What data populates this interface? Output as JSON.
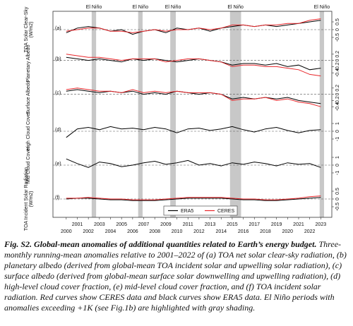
{
  "chart_data": {
    "type": "line",
    "x": [
      2000,
      2001,
      2002,
      2003,
      2004,
      2005,
      2006,
      2007,
      2008,
      2009,
      2010,
      2011,
      2012,
      2013,
      2014,
      2015,
      2016,
      2017,
      2018,
      2019,
      2020,
      2021,
      2022,
      2023
    ],
    "xlim": [
      1998.8,
      2024.0
    ],
    "xticks": [
      2000,
      2001,
      2002,
      2003,
      2004,
      2005,
      2006,
      2007,
      2008,
      2009,
      2010,
      2011,
      2012,
      2013,
      2014,
      2015,
      2016,
      2017,
      2018,
      2019,
      2020,
      2021,
      2022,
      2023
    ],
    "el_nino": [
      {
        "label": "El Niño",
        "range": [
          2002.3,
          2002.7
        ]
      },
      {
        "label": "El Niño",
        "range": [
          2006.5,
          2006.9
        ]
      },
      {
        "label": "El Niño",
        "range": [
          2009.4,
          2009.9
        ]
      },
      {
        "label": "El Niño",
        "range": [
          2014.8,
          2015.8
        ]
      },
      {
        "label": "El Niño",
        "range": [
          2022.9,
          2023.3
        ]
      }
    ],
    "legend": [
      {
        "name": "ERA5",
        "color": "#000000"
      },
      {
        "name": "CERES",
        "color": "#e8262a"
      }
    ],
    "panels": [
      {
        "label": "(a)",
        "ylabel": [
          "TOA Solar Clear-Sky",
          "(W/m2)"
        ],
        "ylim": [
          -1,
          1
        ],
        "yticks": [
          -0.5,
          0,
          0.5
        ],
        "era5": [
          -0.2,
          0.1,
          0.2,
          0.1,
          -0.1,
          0.0,
          -0.3,
          -0.1,
          0.0,
          -0.2,
          0.1,
          0.0,
          0.1,
          -0.1,
          0.1,
          0.2,
          0.3,
          0.2,
          0.3,
          0.2,
          0.3,
          0.4,
          0.5,
          0.6
        ],
        "ceres": [
          -0.1,
          0.0,
          0.1,
          0.1,
          -0.1,
          -0.1,
          -0.2,
          -0.1,
          0.0,
          -0.1,
          0.0,
          0.0,
          0.1,
          0.0,
          0.1,
          0.3,
          0.3,
          0.2,
          0.3,
          0.3,
          0.4,
          0.4,
          0.6,
          0.7
        ]
      },
      {
        "label": "(b)",
        "ylabel": [
          "Planetary Albedo"
        ],
        "ylim": [
          -0.6,
          0.4
        ],
        "yticks": [
          -0.4,
          -0.2,
          0,
          0.2
        ],
        "era5": [
          0.1,
          0.05,
          0.0,
          0.05,
          0.0,
          -0.05,
          0.05,
          0.0,
          0.05,
          0.0,
          -0.05,
          0.0,
          0.05,
          0.0,
          -0.05,
          -0.15,
          -0.1,
          -0.1,
          -0.15,
          -0.1,
          -0.2,
          -0.15,
          -0.3,
          -0.25
        ],
        "ceres": [
          0.2,
          0.15,
          0.1,
          0.1,
          0.05,
          0.0,
          0.05,
          0.05,
          0.05,
          -0.05,
          0.0,
          0.05,
          0.05,
          0.0,
          -0.05,
          -0.2,
          -0.15,
          -0.15,
          -0.2,
          -0.2,
          -0.25,
          -0.3,
          -0.45,
          -0.5
        ]
      },
      {
        "label": "(c)",
        "ylabel": [
          "Surface Albedo"
        ],
        "ylim": [
          -0.6,
          0.4
        ],
        "yticks": [
          -0.4,
          -0.2,
          0,
          0.2
        ],
        "era5": [
          0.1,
          0.15,
          0.1,
          0.05,
          0.1,
          0.05,
          0.1,
          0.0,
          0.05,
          0.0,
          0.1,
          0.05,
          0.0,
          0.05,
          0.0,
          -0.15,
          -0.1,
          -0.15,
          -0.1,
          -0.15,
          -0.1,
          -0.2,
          -0.25,
          -0.3
        ],
        "ceres": [
          0.15,
          0.2,
          0.15,
          0.1,
          0.1,
          0.05,
          0.15,
          0.05,
          0.1,
          0.05,
          0.1,
          0.05,
          0.05,
          0.05,
          0.0,
          -0.2,
          -0.15,
          -0.15,
          -0.1,
          -0.2,
          -0.15,
          -0.25,
          -0.3,
          -0.4
        ]
      },
      {
        "label": "(d)",
        "ylabel": [
          "High Cloud Cover"
        ],
        "ylim": [
          -2,
          2
        ],
        "yticks": [
          -1,
          0,
          1
        ],
        "era5": [
          -0.8,
          0.3,
          0.5,
          0.2,
          0.6,
          0.3,
          0.4,
          0.2,
          0.5,
          0.3,
          -0.2,
          0.3,
          0.4,
          0.1,
          0.3,
          0.6,
          0.2,
          -0.1,
          0.3,
          0.5,
          0.1,
          -0.2,
          0.1,
          0.2
        ]
      },
      {
        "label": "(e)",
        "ylabel": [
          "Mid Cloud Cover"
        ],
        "ylim": [
          -2,
          2
        ],
        "yticks": [
          -1,
          0,
          1
        ],
        "era5": [
          0.8,
          0.2,
          -0.3,
          0.4,
          0.2,
          -0.2,
          0.0,
          0.3,
          0.5,
          0.1,
          0.3,
          0.6,
          0.0,
          0.2,
          -0.1,
          0.3,
          0.1,
          0.4,
          0.2,
          -0.1,
          0.3,
          0.1,
          0.2,
          -0.3
        ]
      },
      {
        "label": "(f)",
        "ylabel": [
          "TOA Incident Solar Radiation",
          "(W/m2)"
        ],
        "ylim": [
          -1,
          1
        ],
        "yticks": [
          -0.5,
          0,
          0.5
        ],
        "era5": [
          0.0,
          0.05,
          0.05,
          0.0,
          -0.05,
          -0.05,
          -0.1,
          -0.1,
          -0.1,
          -0.05,
          0.0,
          0.05,
          0.05,
          0.05,
          0.05,
          0.0,
          -0.05,
          -0.05,
          -0.1,
          -0.1,
          -0.05,
          0.0,
          0.05,
          0.1
        ],
        "ceres": [
          0.05,
          0.05,
          0.1,
          0.05,
          0.0,
          0.0,
          -0.05,
          -0.05,
          -0.05,
          0.0,
          0.05,
          0.1,
          0.1,
          0.1,
          0.1,
          0.05,
          0.0,
          0.0,
          -0.05,
          -0.05,
          0.0,
          0.05,
          0.15,
          0.2
        ]
      }
    ]
  },
  "caption": {
    "title": "Fig. S2. Global-mean anomalies of additional quantities related to Earth’s energy budget.",
    "body": "Three-monthly running-mean anomalies relative to 2001–2022 of (a) TOA net solar clear-sky radiation, (b) planetary albedo (derived from global-mean TOA incident solar and upwelling solar radiation), (c) surface albedo (derived from global-mean surface solar downwelling and upwelling radiation), (d) high-level cloud cover fraction, (e) mid-level cloud cover fraction, and (f) TOA incident solar radiation. Red curves show CERES data and black curves show ERA5 data. El Niño periods with anomalies exceeding +1K (see Fig.1b) are highlighted with gray shading."
  }
}
